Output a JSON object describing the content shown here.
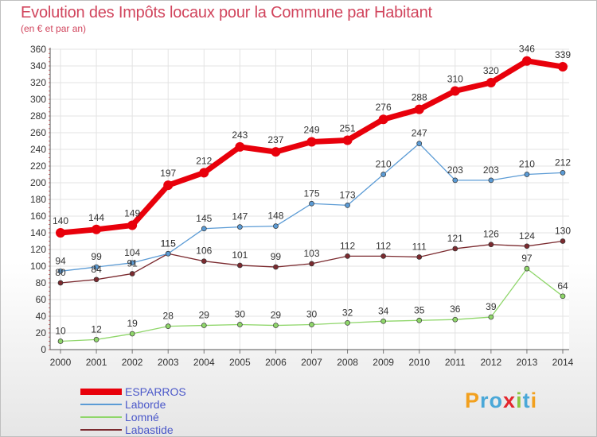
{
  "header": {
    "title": "Evolution des Impôts locaux pour la Commune par Habitant",
    "subtitle": "(en € et par an)"
  },
  "brand": {
    "logo_letters": [
      "P",
      "r",
      "o",
      "x",
      "i",
      "t",
      "i"
    ],
    "logo_colors": [
      "#f2a01e",
      "#4aa8d8",
      "#4aa8d8",
      "#e3262d",
      "#8cc63f",
      "#4aa8d8",
      "#f2a01e"
    ]
  },
  "chart_data": {
    "type": "line",
    "x": [
      2000,
      2001,
      2002,
      2003,
      2004,
      2005,
      2006,
      2007,
      2008,
      2009,
      2010,
      2011,
      2012,
      2013,
      2014
    ],
    "ylim": [
      0,
      360
    ],
    "yticks": [
      0,
      20,
      40,
      60,
      80,
      100,
      120,
      140,
      160,
      180,
      200,
      220,
      240,
      260,
      280,
      300,
      320,
      340,
      360
    ],
    "grid": true,
    "legend_position": "bottom-left",
    "series": [
      {
        "name": "ESPARROS",
        "color": "#e8000b",
        "values": [
          140,
          144,
          149,
          197,
          212,
          243,
          237,
          249,
          251,
          276,
          288,
          310,
          320,
          346,
          339
        ]
      },
      {
        "name": "Laborde",
        "color": "#5b9bd5",
        "values": [
          94,
          99,
          104,
          115,
          145,
          147,
          148,
          175,
          173,
          210,
          247,
          203,
          203,
          210,
          212
        ]
      },
      {
        "name": "Lomné",
        "color": "#8fd66a",
        "values": [
          10,
          12,
          19,
          28,
          29,
          30,
          29,
          30,
          32,
          34,
          35,
          36,
          39,
          97,
          64
        ]
      },
      {
        "name": "Labastide",
        "color": "#7b2a2f",
        "values": [
          80,
          84,
          91,
          115,
          106,
          101,
          99,
          103,
          112,
          112,
          111,
          121,
          126,
          124,
          130
        ]
      }
    ]
  }
}
